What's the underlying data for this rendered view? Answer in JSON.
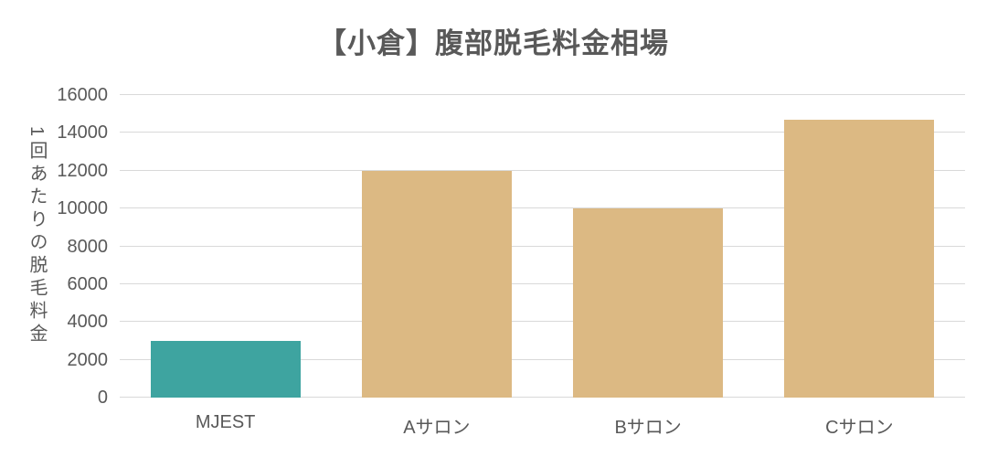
{
  "chart_data": {
    "type": "bar",
    "title": "【小倉】腹部脱毛料金相場",
    "categories": [
      "MJEST",
      "Aサロン",
      "Bサロン",
      "Cサロン"
    ],
    "values": [
      3000,
      12000,
      10000,
      14700
    ],
    "xlabel": "",
    "ylabel": "1回あたりの脱毛料金",
    "ylim": [
      0,
      16000
    ],
    "yticks": [
      0,
      2000,
      4000,
      6000,
      8000,
      10000,
      12000,
      14000,
      16000
    ],
    "grid": true,
    "legend": false,
    "bar_colors": [
      "#3ea4a0",
      "#dcb983",
      "#dcb983",
      "#dcb983"
    ],
    "colors": {
      "highlight_bar": "#3ea4a0",
      "default_bar": "#dcb983",
      "text": "#595959",
      "gridline": "#d9d9d9"
    }
  }
}
